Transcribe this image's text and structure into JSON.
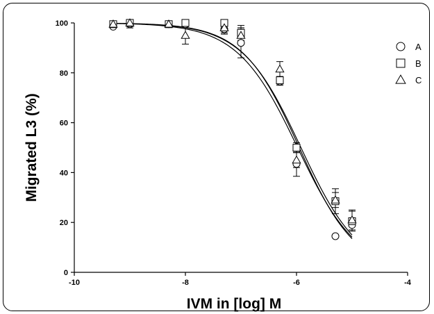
{
  "chart_data": {
    "type": "scatter",
    "xlabel": "IVM in [log] M",
    "ylabel": "Migrated L3 (%)",
    "xlim": [
      -10,
      -4
    ],
    "ylim": [
      0,
      100
    ],
    "x_ticks": [
      -10,
      -8,
      -6,
      -4
    ],
    "y_ticks": [
      0,
      20,
      40,
      60,
      80,
      100
    ],
    "x_tick_labels": [
      "-10",
      "-8",
      "-6",
      "-4"
    ],
    "y_tick_labels": [
      "0",
      "20",
      "40",
      "60",
      "80",
      "100"
    ],
    "grid": false,
    "legend_position": "top-right",
    "series": [
      {
        "name": "A",
        "marker": "circle",
        "x": [
          -9.3,
          -9.0,
          -8.3,
          -8.0,
          -7.3,
          -7.0,
          -6.3,
          -6.0,
          -5.3,
          -5.0
        ],
        "y": [
          98.5,
          99.5,
          99.5,
          99.5,
          97.5,
          92.0,
          76.5,
          43.5,
          14.5,
          19.0
        ],
        "err": [
          0,
          1.5,
          0,
          0,
          2,
          6,
          1.5,
          5,
          0,
          2
        ]
      },
      {
        "name": "B",
        "marker": "square",
        "x": [
          -9.3,
          -9.0,
          -8.3,
          -8.0,
          -7.3,
          -7.0,
          -6.3,
          -6.0,
          -5.3,
          -5.0
        ],
        "y": [
          99.5,
          100.0,
          99.5,
          100.0,
          100.0,
          96.0,
          77.0,
          50.0,
          28.5,
          20.5
        ],
        "err": [
          0,
          0,
          0,
          0,
          0,
          3,
          1.5,
          2,
          5,
          4
        ]
      },
      {
        "name": "C",
        "marker": "triangle",
        "x": [
          -9.3,
          -9.0,
          -8.3,
          -8.0,
          -7.3,
          -7.0,
          -6.3,
          -6.0,
          -5.3,
          -5.0
        ],
        "y": [
          99.5,
          100.0,
          99.5,
          95.0,
          98.0,
          95.0,
          81.5,
          45.0,
          29.0,
          21.0
        ],
        "err": [
          0,
          0,
          0,
          3.5,
          2,
          3,
          3,
          3,
          3,
          4
        ]
      }
    ],
    "fits": [
      {
        "top": 100,
        "bottom": 0,
        "logic50": -5.95,
        "hill": 0.85
      },
      {
        "top": 100,
        "bottom": 0,
        "logic50": -5.92,
        "hill": 0.82
      },
      {
        "top": 100,
        "bottom": 0,
        "logic50": -5.98,
        "hill": 0.8
      }
    ]
  }
}
